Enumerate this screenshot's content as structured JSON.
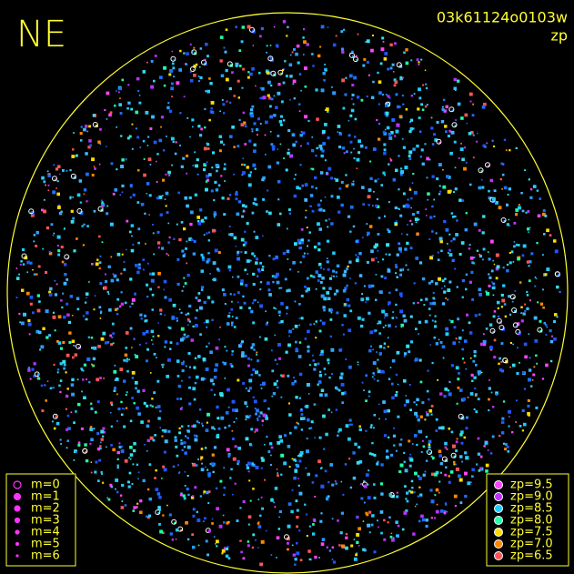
{
  "header": {
    "title": "NE",
    "frame_id": "03k61124o0103w",
    "quantity": "zp"
  },
  "magnitude_legend": {
    "marker_color": "#ff33ff",
    "items": [
      "m=0",
      "m=1",
      "m=2",
      "m=3",
      "m=4",
      "m=5",
      "m=6"
    ]
  },
  "zp_legend": {
    "items": [
      {
        "label": "zp=9.5",
        "color": "#ff44ff"
      },
      {
        "label": "zp=9.0",
        "color": "#bb33ff"
      },
      {
        "label": "zp=8.5",
        "color": "#22ccff"
      },
      {
        "label": "zp=8.0",
        "color": "#22ffaa"
      },
      {
        "label": "zp=7.5",
        "color": "#ffdd00"
      },
      {
        "label": "zp=7.0",
        "color": "#ff8800"
      },
      {
        "label": "zp=6.5",
        "color": "#ff5555"
      }
    ]
  }
}
